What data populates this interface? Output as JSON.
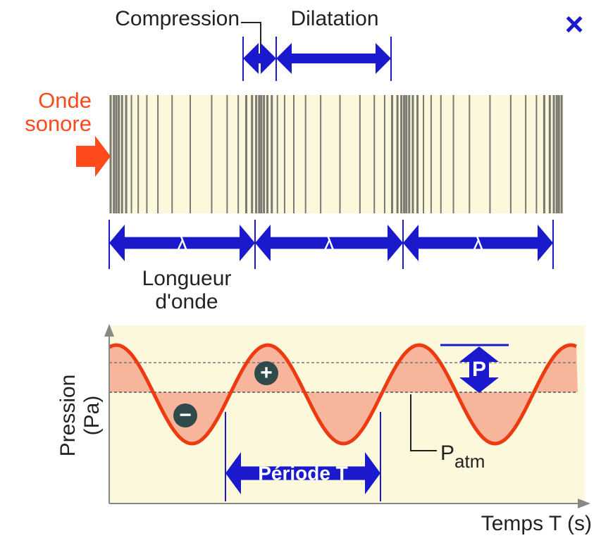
{
  "labels": {
    "compression": "Compression",
    "dilatation": "Dilatation",
    "close": "×",
    "source": [
      "Onde",
      "sonore"
    ],
    "wavelength_symbol": [
      "λ",
      "λ",
      "λ"
    ],
    "wavelength": [
      "Longueur",
      "d'onde"
    ],
    "y_axis": [
      "Pression",
      "(Pa)"
    ],
    "plus": "+",
    "minus": "−",
    "amplitude": "P",
    "period": "Période T",
    "atm": {
      "base": "P",
      "sub": "atm"
    },
    "x_axis": "Temps T (s)"
  }
}
